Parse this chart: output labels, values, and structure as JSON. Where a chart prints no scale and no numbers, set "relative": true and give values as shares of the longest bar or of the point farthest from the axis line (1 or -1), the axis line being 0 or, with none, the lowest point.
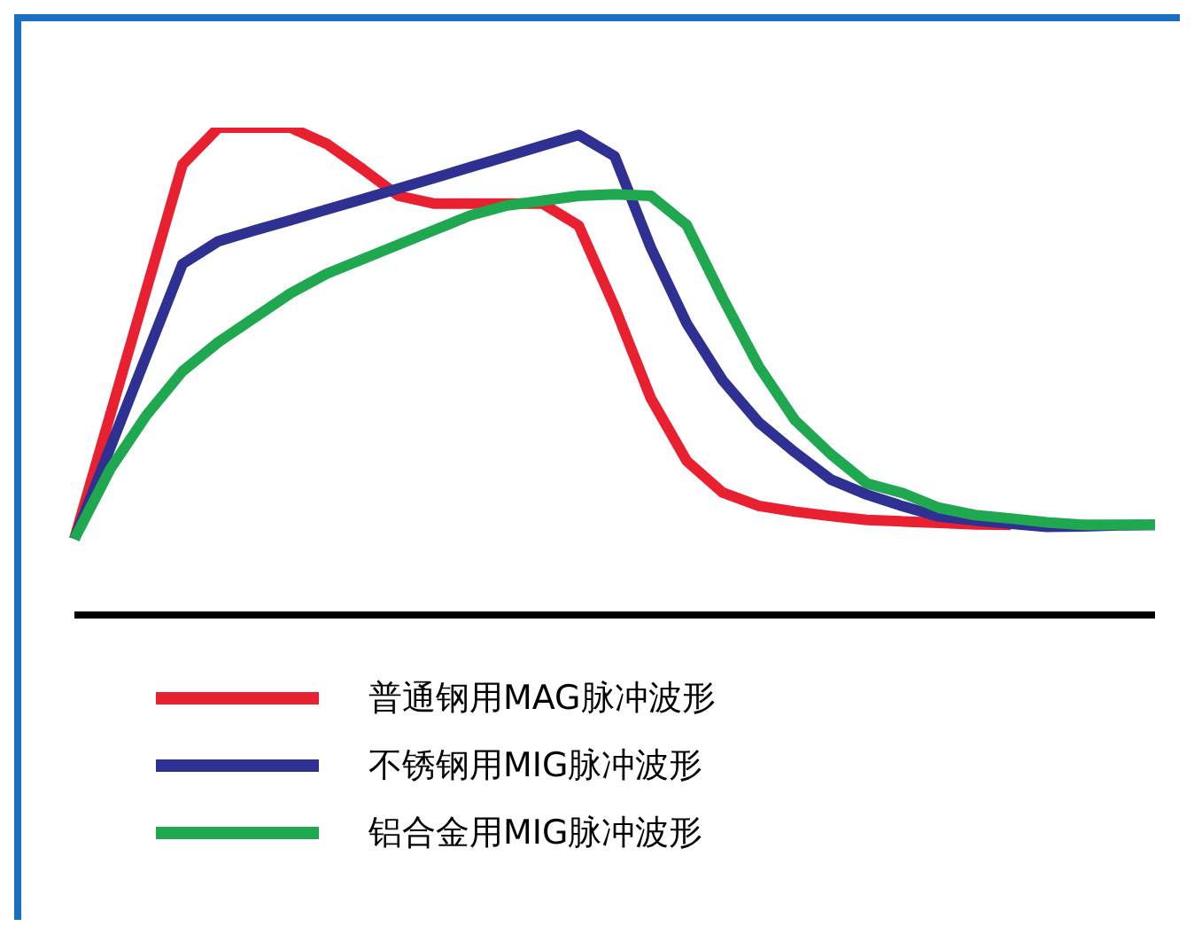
{
  "chart_data": {
    "type": "line",
    "relative": true,
    "legend": "bottom",
    "marker": "none",
    "line_style": "solid",
    "grid": false,
    "categories": [
      null,
      null,
      null,
      null,
      null,
      null,
      null,
      null,
      null,
      null,
      null,
      null,
      null,
      null,
      null,
      null,
      null,
      null,
      null,
      null,
      null,
      null,
      null,
      null,
      null,
      null,
      null,
      null,
      null,
      null,
      null
    ],
    "series": [
      {
        "name": "普通钢用MAG脉冲波形",
        "color": "#e8202f",
        "values": [
          0.156,
          0.412,
          0.668,
          0.924,
          1,
          1,
          1,
          0.967,
          0.915,
          0.86,
          0.844,
          0.844,
          0.844,
          0.844,
          0.799,
          0.632,
          0.445,
          0.316,
          0.251,
          0.224,
          0.212,
          0.203,
          0.195,
          0.192,
          0.189,
          0.186,
          0.185,
          null,
          null,
          null,
          null
        ]
      },
      {
        "name": "不锈钢用MIG脉冲波形",
        "color": "#2e3192",
        "values": [
          0.156,
          0.344,
          0.532,
          0.72,
          0.767,
          0.789,
          0.81,
          0.832,
          0.853,
          0.875,
          0.897,
          0.919,
          0.941,
          0.963,
          0.985,
          0.941,
          0.754,
          0.598,
          0.481,
          0.395,
          0.334,
          0.278,
          0.247,
          0.223,
          0.202,
          0.194,
          0.187,
          0.181,
          0.182,
          0.184,
          0.185
        ]
      },
      {
        "name": "铝合金用MIG脉冲波形",
        "color": "#1fa84f",
        "values": [
          0.156,
          0.3,
          0.41,
          0.5,
          0.56,
          0.61,
          0.66,
          0.7,
          0.73,
          0.76,
          0.79,
          0.82,
          0.84,
          0.85,
          0.86,
          0.863,
          0.86,
          0.8,
          0.65,
          0.51,
          0.4,
          0.33,
          0.27,
          0.25,
          0.22,
          0.205,
          0.198,
          0.19,
          0.185,
          0.185,
          0.185
        ]
      }
    ]
  }
}
